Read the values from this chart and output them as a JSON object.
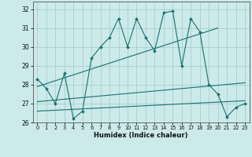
{
  "xlabel": "Humidex (Indice chaleur)",
  "bg_color": "#cceaea",
  "grid_color": "#aacece",
  "line_color": "#1a7070",
  "xlim": [
    -0.5,
    23.5
  ],
  "ylim": [
    26.0,
    32.4
  ],
  "yticks": [
    26,
    27,
    28,
    29,
    30,
    31,
    32
  ],
  "xticks": [
    0,
    1,
    2,
    3,
    4,
    5,
    6,
    7,
    8,
    9,
    10,
    11,
    12,
    13,
    14,
    15,
    16,
    17,
    18,
    19,
    20,
    21,
    22,
    23
  ],
  "line1_x": [
    0,
    1,
    2,
    3,
    4,
    5,
    6,
    7,
    8,
    9,
    10,
    11,
    12,
    13,
    14,
    15,
    16,
    17,
    18,
    19,
    20,
    21,
    22,
    23
  ],
  "line1_y": [
    28.3,
    27.8,
    27.0,
    28.6,
    26.2,
    26.6,
    29.4,
    30.0,
    30.5,
    31.5,
    30.0,
    31.5,
    30.5,
    29.8,
    31.8,
    31.9,
    29.0,
    31.5,
    30.8,
    28.0,
    27.5,
    26.3,
    26.8,
    27.0
  ],
  "line2_x": [
    0,
    20
  ],
  "line2_y": [
    27.9,
    31.0
  ],
  "line3_x": [
    0,
    23
  ],
  "line3_y": [
    27.1,
    28.1
  ],
  "line4_x": [
    0,
    23
  ],
  "line4_y": [
    26.6,
    27.15
  ]
}
